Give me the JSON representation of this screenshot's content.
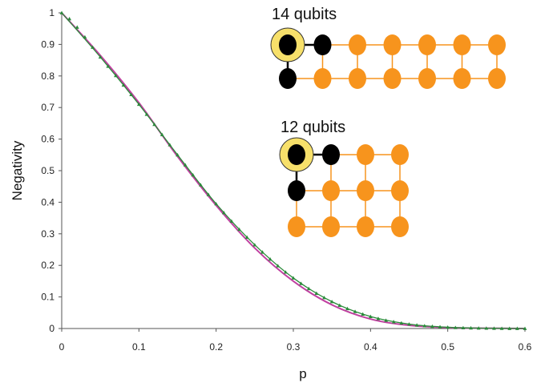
{
  "chart_data": {
    "type": "line",
    "xlabel": "p",
    "ylabel": "Negativity",
    "xlim": [
      0,
      0.6
    ],
    "ylim": [
      0,
      1
    ],
    "x_ticks": [
      "0",
      "0.1",
      "0.2",
      "0.3",
      "0.4",
      "0.5",
      "0.6"
    ],
    "y_ticks": [
      "0",
      "0.1",
      "0.2",
      "0.3",
      "0.4",
      "0.5",
      "0.6",
      "0.7",
      "0.8",
      "0.9",
      "1"
    ],
    "grid": false,
    "series": [
      {
        "color": "#c040a0",
        "marker": "none",
        "x": [
          0,
          0.05,
          0.1,
          0.15,
          0.2,
          0.25,
          0.3,
          0.35,
          0.4,
          0.45,
          0.5,
          0.55,
          0.6
        ],
        "y": [
          1.0,
          0.865,
          0.715,
          0.545,
          0.39,
          0.255,
          0.15,
          0.075,
          0.03,
          0.01,
          0.003,
          0.001,
          0.0
        ]
      },
      {
        "color": "#2a8a3a",
        "marker": "triangle",
        "x": [
          0,
          0.05,
          0.1,
          0.15,
          0.2,
          0.25,
          0.3,
          0.35,
          0.4,
          0.45,
          0.5,
          0.55,
          0.6
        ],
        "y": [
          1.0,
          0.86,
          0.71,
          0.55,
          0.395,
          0.265,
          0.16,
          0.085,
          0.038,
          0.014,
          0.004,
          0.001,
          0.0
        ]
      }
    ],
    "annotations": [
      {
        "label": "14 qubits",
        "grid_cols": 7,
        "grid_rows": 2,
        "highlight_color": "#f7e06a",
        "black_nodes": [
          [
            0,
            0
          ],
          [
            1,
            0
          ],
          [
            0,
            1
          ]
        ]
      },
      {
        "label": "12 qubits",
        "grid_cols": 4,
        "grid_rows": 3,
        "highlight_color": "#f7e06a",
        "black_nodes": [
          [
            0,
            0
          ],
          [
            1,
            0
          ],
          [
            0,
            1
          ]
        ]
      }
    ],
    "node_color": "#f7941d",
    "edge_color": "#f7941d"
  }
}
